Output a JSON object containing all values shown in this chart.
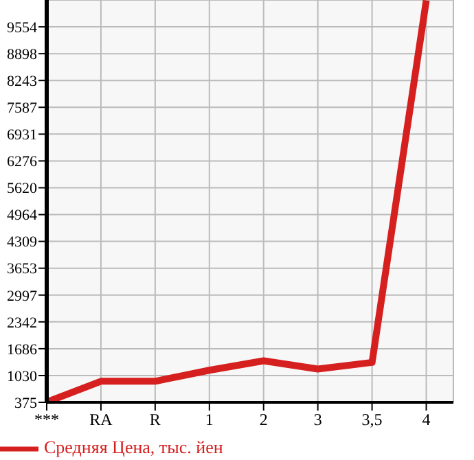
{
  "chart_data": {
    "type": "line",
    "categories": [
      "***",
      "RA",
      "R",
      "1",
      "2",
      "3",
      "3,5",
      "4"
    ],
    "series": [
      {
        "name": "Средняя Цена, тыс. йен",
        "color": "#d61f1f",
        "values": [
          380,
          890,
          890,
          1160,
          1390,
          1190,
          1350,
          10200
        ]
      }
    ],
    "ylim": [
      375,
      10210
    ],
    "yticks": [
      375,
      1030,
      1686,
      2342,
      2997,
      3653,
      4309,
      4964,
      5620,
      6276,
      6931,
      7587,
      8243,
      8898,
      9554
    ],
    "grid": true,
    "legend": "bottom left",
    "marker": "none",
    "line_style": "solid"
  }
}
